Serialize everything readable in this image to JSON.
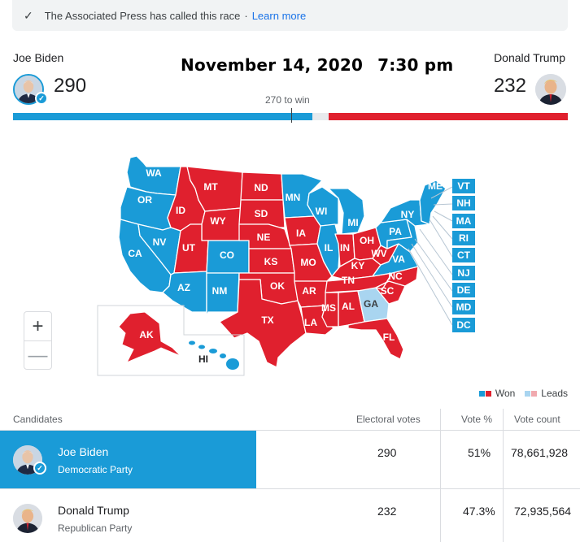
{
  "banner": {
    "text": "The Associated Press has called this race",
    "separator": "·",
    "link": "Learn more"
  },
  "header": {
    "date": "November 14, 2020",
    "time": "7:30 pm",
    "to_win": "270 to win",
    "left": {
      "name": "Joe Biden",
      "electoral_votes": "290"
    },
    "right": {
      "name": "Donald Trump",
      "electoral_votes": "232"
    }
  },
  "progress": {
    "total": 538,
    "blue": 290,
    "red": 232,
    "threshold": 270
  },
  "colors": {
    "dem_won": "#1a9bd7",
    "rep_won": "#e0202e",
    "dem_leads": "#a9d5f0",
    "rep_leads": "#f0a9ae"
  },
  "map": {
    "states_dem": [
      "WA",
      "OR",
      "CA",
      "NV",
      "AZ",
      "CO",
      "NM",
      "MN",
      "WI",
      "IL",
      "MI",
      "PA",
      "VA",
      "NY",
      "ME",
      "HI"
    ],
    "states_rep": [
      "MT",
      "ND",
      "ID",
      "WY",
      "SD",
      "UT",
      "NE",
      "KS",
      "OK",
      "TX",
      "IA",
      "MO",
      "AR",
      "LA",
      "MS",
      "AL",
      "TN",
      "KY",
      "IN",
      "OH",
      "WV",
      "NC",
      "SC",
      "FL",
      "AK"
    ],
    "states_leads": [
      "GA"
    ],
    "callouts": [
      "VT",
      "NH",
      "MA",
      "RI",
      "CT",
      "NJ",
      "DE",
      "MD",
      "DC"
    ]
  },
  "zoom": {
    "in": "+",
    "out": "—"
  },
  "legend": {
    "won": "Won",
    "leads": "Leads"
  },
  "table": {
    "headers": {
      "candidates": "Candidates",
      "electoral": "Electoral votes",
      "vote_pct": "Vote %",
      "vote_count": "Vote count"
    },
    "rows": [
      {
        "name": "Joe Biden",
        "party": "Democratic Party",
        "electoral": "290",
        "pct": "51%",
        "count": "78,661,928"
      },
      {
        "name": "Donald Trump",
        "party": "Republican Party",
        "electoral": "232",
        "pct": "47.3%",
        "count": "72,935,564"
      }
    ]
  }
}
